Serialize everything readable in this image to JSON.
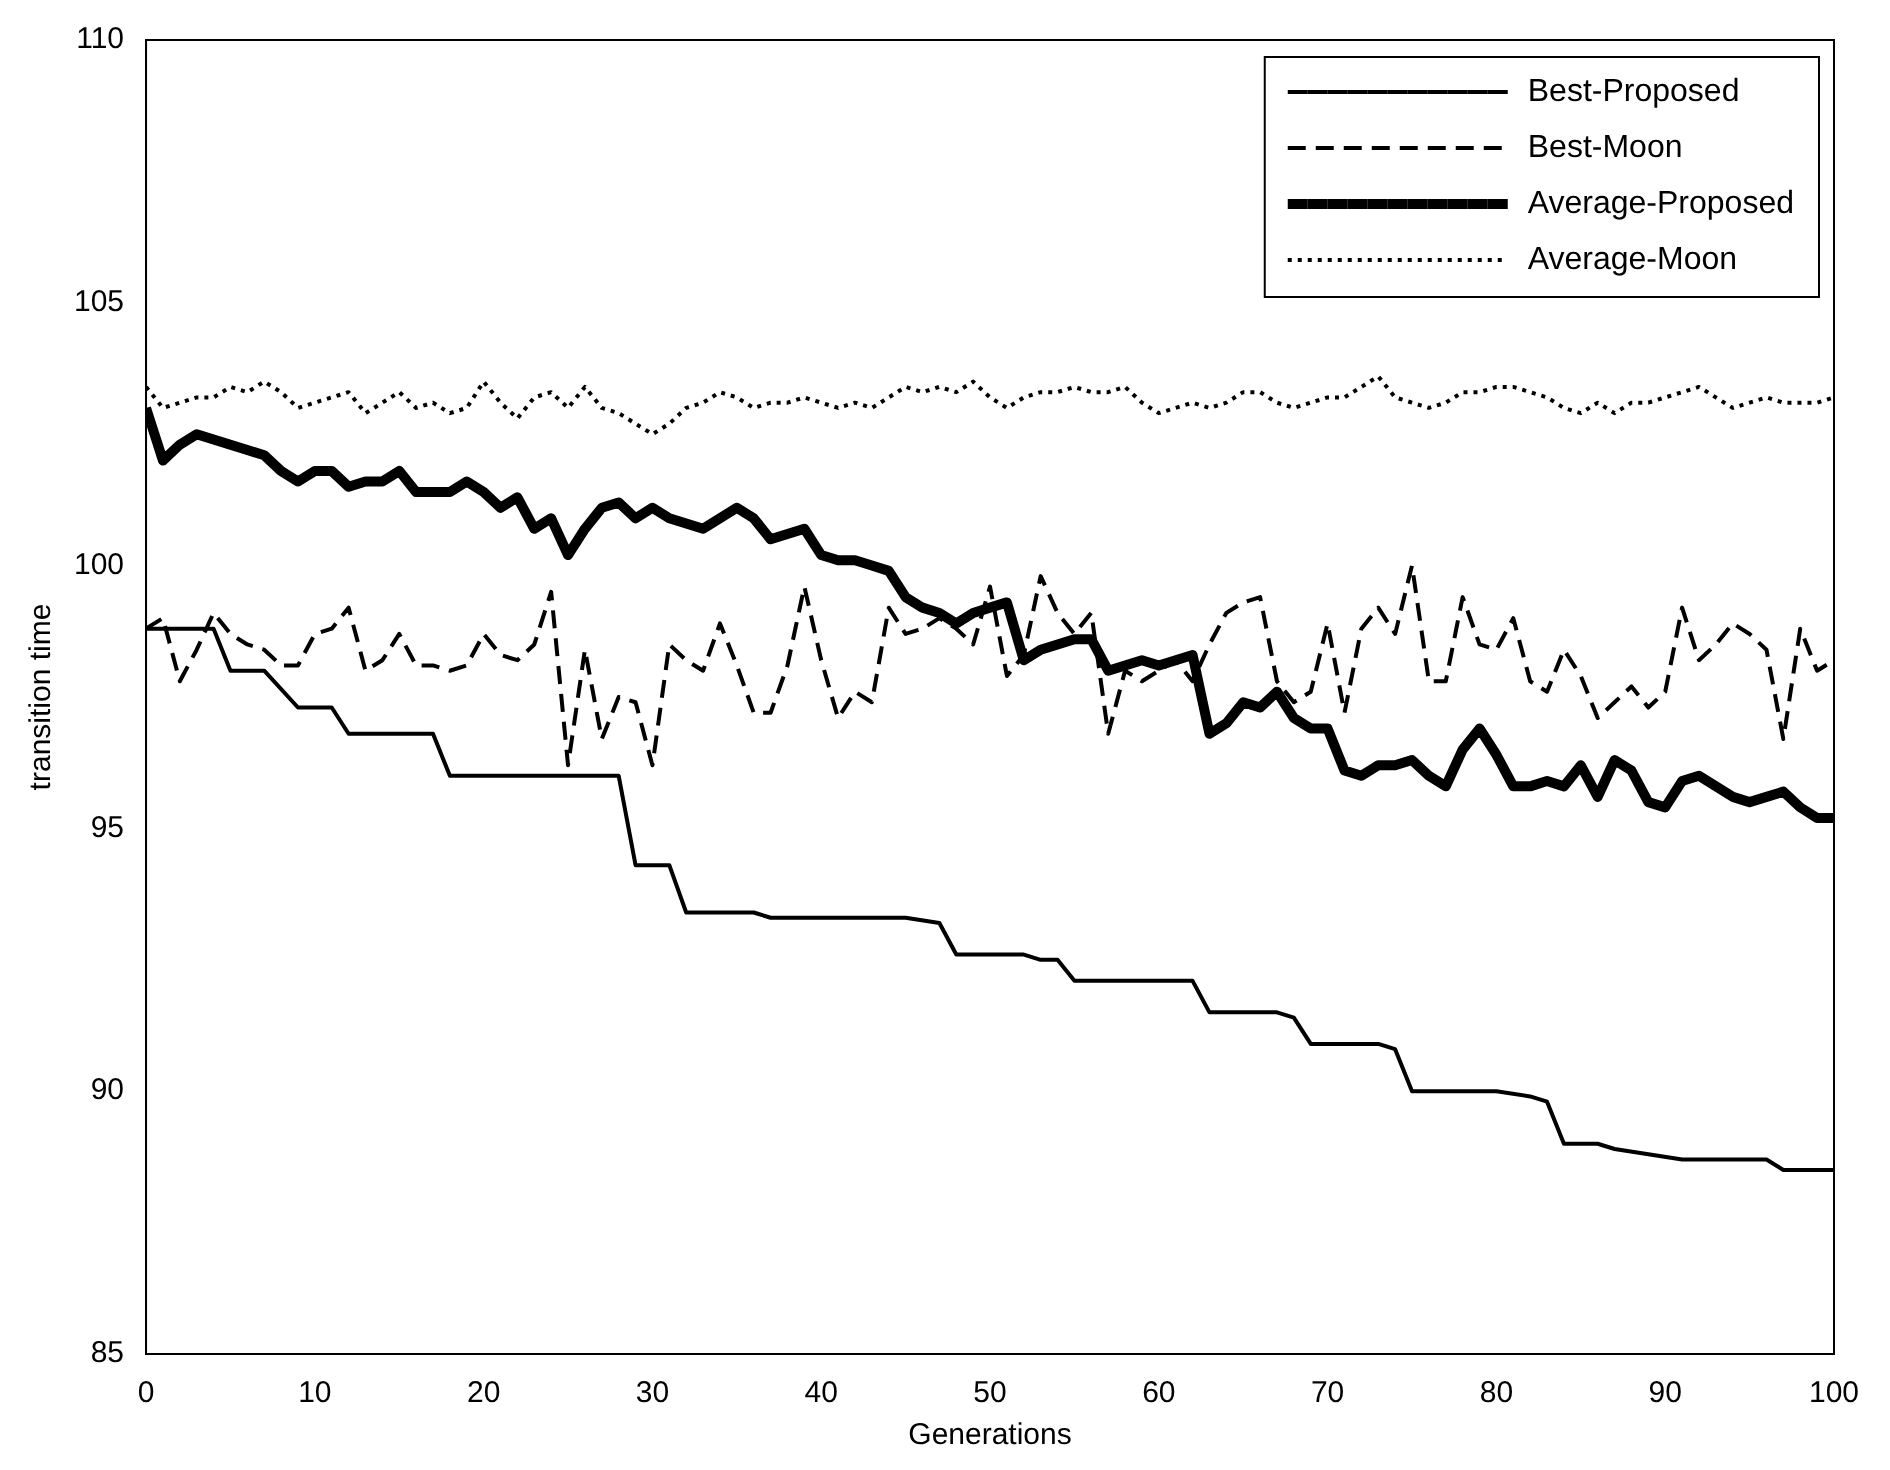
{
  "chart_data": {
    "type": "line",
    "xlabel": "Generations",
    "ylabel": "transition time",
    "x": [
      0,
      1,
      2,
      3,
      4,
      5,
      6,
      7,
      8,
      9,
      10,
      11,
      12,
      13,
      14,
      15,
      16,
      17,
      18,
      19,
      20,
      21,
      22,
      23,
      24,
      25,
      26,
      27,
      28,
      29,
      30,
      31,
      32,
      33,
      34,
      35,
      36,
      37,
      38,
      39,
      40,
      41,
      42,
      43,
      44,
      45,
      46,
      47,
      48,
      49,
      50,
      51,
      52,
      53,
      54,
      55,
      56,
      57,
      58,
      59,
      60,
      61,
      62,
      63,
      64,
      65,
      66,
      67,
      68,
      69,
      70,
      71,
      72,
      73,
      74,
      75,
      76,
      77,
      78,
      79,
      80,
      81,
      82,
      83,
      84,
      85,
      86,
      87,
      88,
      89,
      90,
      91,
      92,
      93,
      94,
      95,
      96,
      97,
      98,
      99,
      100
    ],
    "series": [
      {
        "name": "Best-Proposed",
        "color": "#000000",
        "line_style": "solid",
        "x": [
          0,
          4,
          5,
          7,
          9,
          11,
          12,
          17,
          18,
          28,
          29,
          31,
          32,
          36,
          37,
          45,
          47,
          48,
          52,
          53,
          54,
          55,
          62,
          63,
          67,
          68,
          69,
          73,
          74,
          75,
          80,
          82,
          83,
          84,
          86,
          87,
          89,
          91,
          96,
          97,
          100
        ],
        "values": [
          98.8,
          98.8,
          98.0,
          98.0,
          97.3,
          97.3,
          96.8,
          96.8,
          96.0,
          96.0,
          94.3,
          94.3,
          93.4,
          93.4,
          93.3,
          93.3,
          93.2,
          92.6,
          92.6,
          92.5,
          92.5,
          92.1,
          92.1,
          91.5,
          91.5,
          91.4,
          90.9,
          90.9,
          90.8,
          90.0,
          90.0,
          89.9,
          89.8,
          89.0,
          89.0,
          88.9,
          88.8,
          88.7,
          88.7,
          88.5,
          88.5
        ]
      },
      {
        "name": "Best-Moon",
        "color": "#000000",
        "line_style": "dashed",
        "values": [
          98.8,
          99.0,
          97.8,
          98.4,
          99.1,
          98.7,
          98.5,
          98.4,
          98.1,
          98.1,
          98.7,
          98.8,
          99.2,
          98.0,
          98.2,
          98.7,
          98.1,
          98.1,
          98.0,
          98.1,
          98.7,
          98.3,
          98.2,
          98.5,
          99.5,
          96.2,
          98.4,
          96.7,
          97.5,
          97.4,
          96.2,
          98.5,
          98.2,
          98.0,
          98.9,
          98.1,
          97.2,
          97.2,
          98.1,
          99.6,
          98.2,
          97.1,
          97.6,
          97.4,
          99.2,
          98.7,
          98.8,
          99.0,
          98.8,
          98.5,
          99.6,
          97.9,
          98.3,
          99.8,
          99.1,
          98.7,
          99.1,
          96.8,
          98.0,
          97.8,
          98.0,
          98.2,
          97.8,
          98.5,
          99.1,
          99.3,
          99.4,
          97.8,
          97.4,
          97.6,
          98.9,
          97.2,
          98.8,
          99.2,
          98.7,
          100.0,
          97.8,
          97.8,
          99.4,
          98.5,
          98.4,
          99.0,
          97.8,
          97.6,
          98.4,
          97.9,
          97.1,
          97.4,
          97.7,
          97.3,
          97.6,
          99.2,
          98.2,
          98.5,
          98.9,
          98.7,
          98.4,
          96.7,
          98.8,
          98.0,
          98.2
        ]
      },
      {
        "name": "Average-Proposed",
        "color": "#000000",
        "line_style": "solid",
        "values": [
          103.0,
          102.0,
          102.3,
          102.5,
          102.4,
          102.3,
          102.2,
          102.1,
          101.8,
          101.6,
          101.8,
          101.8,
          101.5,
          101.6,
          101.6,
          101.8,
          101.4,
          101.4,
          101.4,
          101.6,
          101.4,
          101.1,
          101.3,
          100.7,
          100.9,
          100.2,
          100.7,
          101.1,
          101.2,
          100.9,
          101.1,
          100.9,
          100.8,
          100.7,
          100.9,
          101.1,
          100.9,
          100.5,
          100.6,
          100.7,
          100.2,
          100.1,
          100.1,
          100.0,
          99.9,
          99.4,
          99.2,
          99.1,
          98.9,
          99.1,
          99.2,
          99.3,
          98.2,
          98.4,
          98.5,
          98.6,
          98.6,
          98.0,
          98.1,
          98.2,
          98.1,
          98.2,
          98.3,
          96.8,
          97.0,
          97.4,
          97.3,
          97.6,
          97.1,
          96.9,
          96.9,
          96.1,
          96.0,
          96.2,
          96.2,
          96.3,
          96.0,
          95.8,
          96.5,
          96.9,
          96.4,
          95.8,
          95.8,
          95.9,
          95.8,
          96.2,
          95.6,
          96.3,
          96.1,
          95.5,
          95.4,
          95.9,
          96.0,
          95.8,
          95.6,
          95.5,
          95.6,
          95.7,
          95.4,
          95.2,
          95.2
        ]
      },
      {
        "name": "Average-Moon",
        "color": "#000000",
        "line_style": "dotted",
        "values": [
          103.4,
          103.0,
          103.1,
          103.2,
          103.2,
          103.4,
          103.3,
          103.5,
          103.3,
          103.0,
          103.1,
          103.2,
          103.3,
          102.9,
          103.1,
          103.3,
          103.0,
          103.1,
          102.9,
          103.0,
          103.5,
          103.1,
          102.8,
          103.2,
          103.3,
          103.0,
          103.4,
          103.0,
          102.9,
          102.7,
          102.5,
          102.7,
          103.0,
          103.1,
          103.3,
          103.2,
          103.0,
          103.1,
          103.1,
          103.2,
          103.1,
          103.0,
          103.1,
          103.0,
          103.2,
          103.4,
          103.3,
          103.4,
          103.3,
          103.5,
          103.2,
          103.0,
          103.2,
          103.3,
          103.3,
          103.4,
          103.3,
          103.3,
          103.4,
          103.1,
          102.9,
          103.0,
          103.1,
          103.0,
          103.1,
          103.3,
          103.3,
          103.1,
          103.0,
          103.1,
          103.2,
          103.2,
          103.4,
          103.6,
          103.2,
          103.1,
          103.0,
          103.1,
          103.3,
          103.3,
          103.4,
          103.4,
          103.3,
          103.2,
          103.0,
          102.9,
          103.1,
          102.9,
          103.1,
          103.1,
          103.2,
          103.3,
          103.4,
          103.2,
          103.0,
          103.1,
          103.2,
          103.1,
          103.1,
          103.1,
          103.2
        ]
      }
    ],
    "xlim": [
      0,
      100
    ],
    "xticks": [
      0,
      10,
      20,
      30,
      40,
      50,
      60,
      70,
      80,
      90,
      100
    ],
    "ylim": [
      85,
      110
    ],
    "yticks": [
      85,
      90,
      95,
      100,
      105,
      110
    ],
    "grid": false,
    "legend": "top right",
    "marker": "none"
  }
}
